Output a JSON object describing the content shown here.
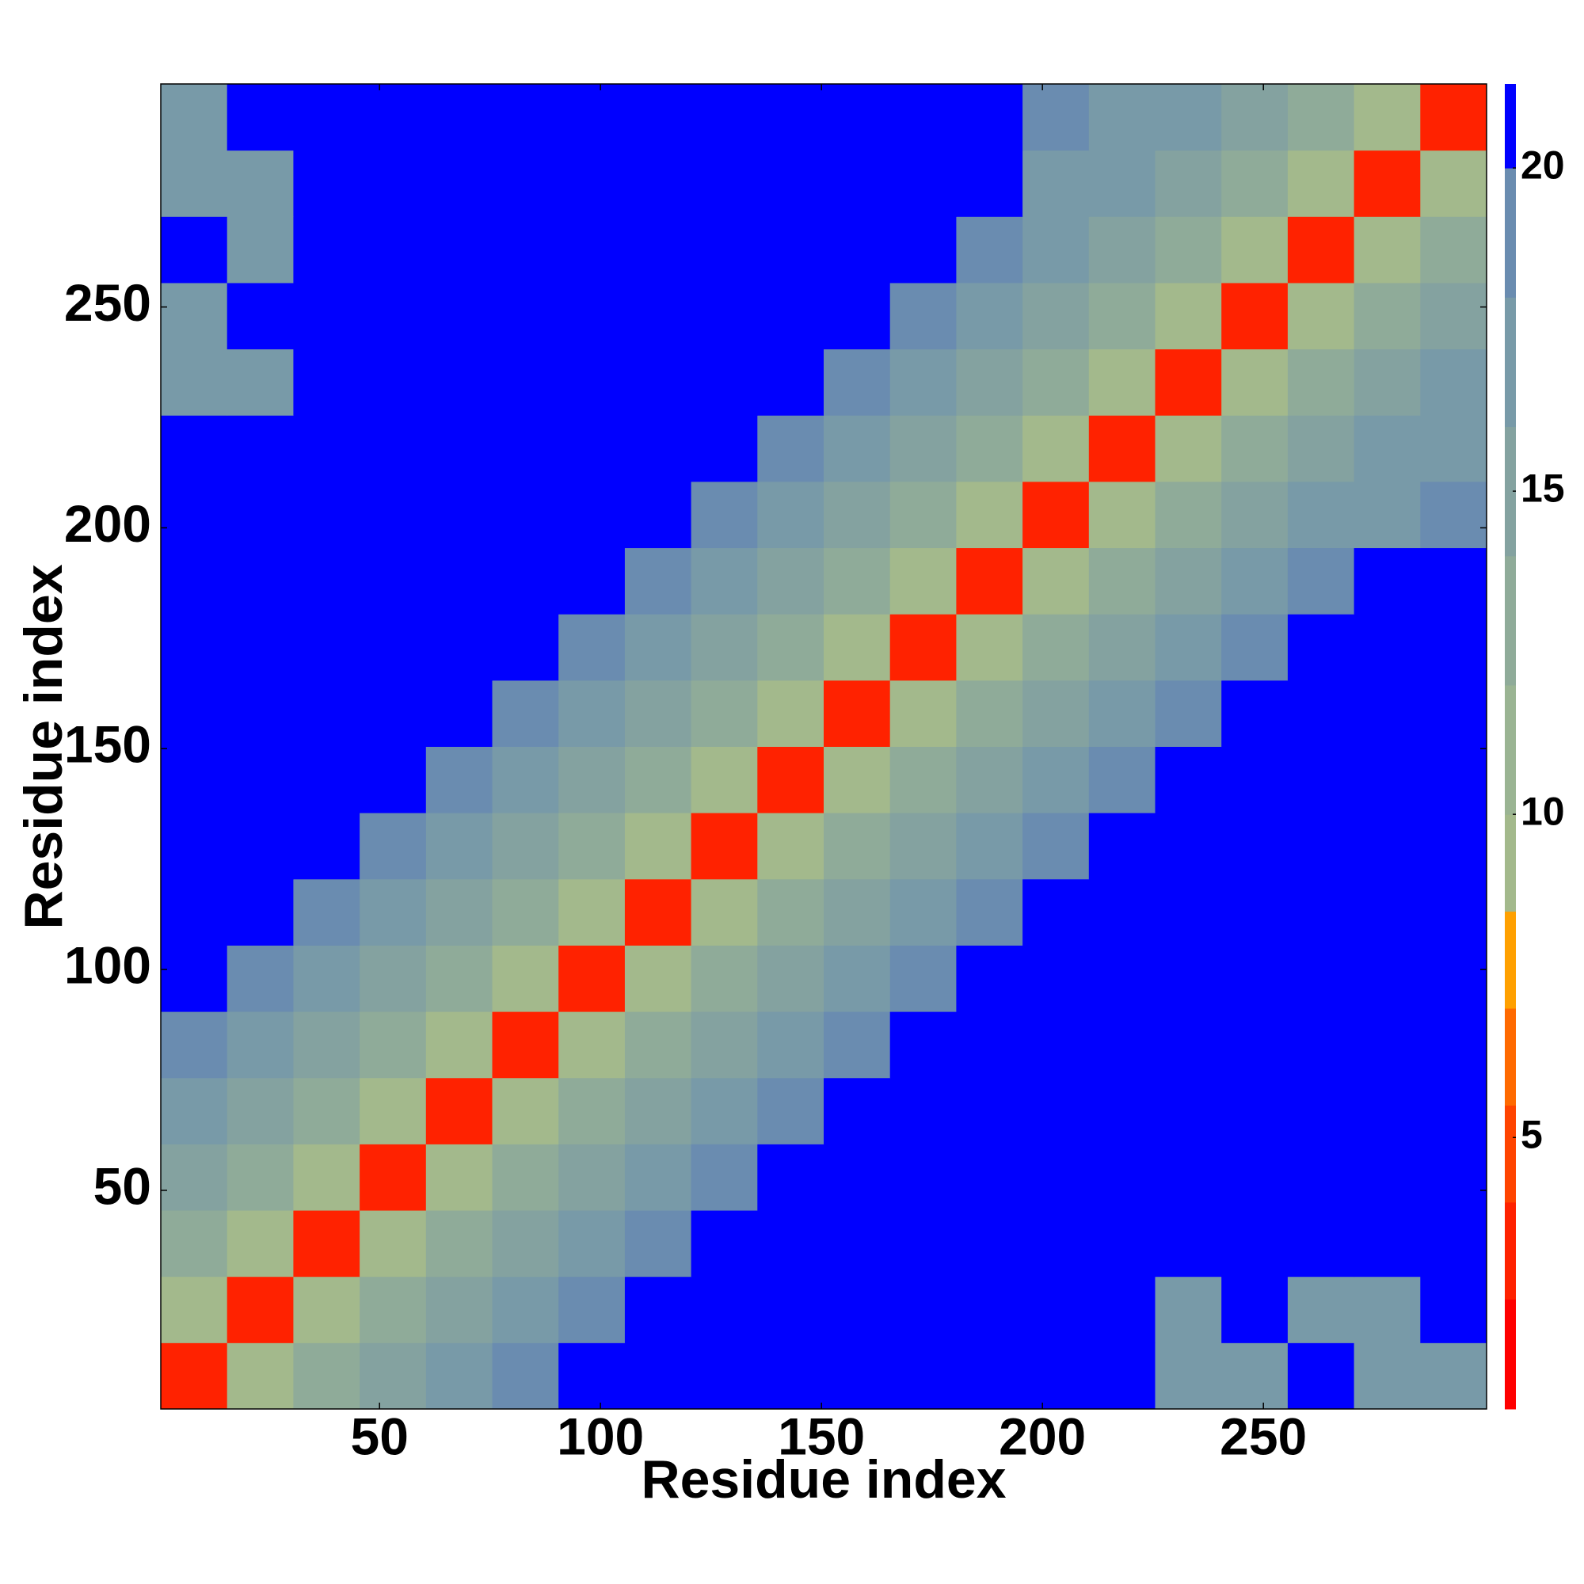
{
  "chart_data": {
    "type": "heatmap",
    "xlabel": "Residue index",
    "ylabel": "Residue index",
    "xlim": [
      0.5,
      300.5
    ],
    "ylim": [
      0.5,
      300.5
    ],
    "xticks": [
      50,
      100,
      150,
      200,
      250
    ],
    "yticks": [
      50,
      100,
      150,
      200,
      250
    ],
    "xbins": [
      0.5,
      15.5,
      30.5,
      45.5,
      60.5,
      75.5,
      90.5,
      105.5,
      120.5,
      135.5,
      150.5,
      165.5,
      180.5,
      195.5,
      210.5,
      225.5,
      240.5,
      255.5,
      270.5,
      285.5,
      300.5
    ],
    "ybins": [
      0.5,
      15.5,
      30.5,
      45.5,
      60.5,
      75.5,
      90.5,
      105.5,
      120.5,
      135.5,
      150.5,
      165.5,
      180.5,
      195.5,
      210.5,
      225.5,
      240.5,
      255.5,
      270.5,
      285.5,
      300.5
    ],
    "values": [
      [
        4,
        10,
        13,
        15,
        18,
        20,
        21,
        21,
        21,
        21,
        21,
        21,
        21,
        21,
        21,
        18,
        18,
        21,
        18,
        18
      ],
      [
        10,
        4,
        10,
        13,
        15,
        18,
        20,
        21,
        21,
        21,
        21,
        21,
        21,
        21,
        21,
        18,
        21,
        18,
        18,
        21
      ],
      [
        13,
        10,
        4,
        10,
        13,
        15,
        18,
        20,
        21,
        21,
        21,
        21,
        21,
        21,
        21,
        21,
        21,
        21,
        21,
        21
      ],
      [
        15,
        13,
        10,
        4,
        10,
        13,
        15,
        18,
        20,
        21,
        21,
        21,
        21,
        21,
        21,
        21,
        21,
        21,
        21,
        21
      ],
      [
        18,
        15,
        13,
        10,
        4,
        10,
        13,
        15,
        18,
        20,
        21,
        21,
        21,
        21,
        21,
        21,
        21,
        21,
        21,
        21
      ],
      [
        20,
        18,
        15,
        13,
        10,
        4,
        10,
        13,
        15,
        18,
        20,
        21,
        21,
        21,
        21,
        21,
        21,
        21,
        21,
        21
      ],
      [
        21,
        20,
        18,
        15,
        13,
        10,
        4,
        10,
        13,
        15,
        18,
        20,
        21,
        21,
        21,
        21,
        21,
        21,
        21,
        21
      ],
      [
        21,
        21,
        20,
        18,
        15,
        13,
        10,
        4,
        10,
        13,
        15,
        18,
        20,
        21,
        21,
        21,
        21,
        21,
        21,
        21
      ],
      [
        21,
        21,
        21,
        20,
        18,
        15,
        13,
        10,
        4,
        10,
        13,
        15,
        18,
        20,
        21,
        21,
        21,
        21,
        21,
        21
      ],
      [
        21,
        21,
        21,
        21,
        20,
        18,
        15,
        13,
        10,
        4,
        10,
        13,
        15,
        18,
        20,
        21,
        21,
        21,
        21,
        21
      ],
      [
        21,
        21,
        21,
        21,
        21,
        20,
        18,
        15,
        13,
        10,
        4,
        10,
        13,
        15,
        18,
        20,
        21,
        21,
        21,
        21
      ],
      [
        21,
        21,
        21,
        21,
        21,
        21,
        20,
        18,
        15,
        13,
        10,
        4,
        10,
        13,
        15,
        18,
        20,
        21,
        21,
        21
      ],
      [
        21,
        21,
        21,
        21,
        21,
        21,
        21,
        20,
        18,
        15,
        13,
        10,
        4,
        10,
        13,
        15,
        18,
        20,
        21,
        21
      ],
      [
        21,
        21,
        21,
        21,
        21,
        21,
        21,
        21,
        20,
        18,
        15,
        13,
        10,
        4,
        10,
        13,
        15,
        17,
        18,
        20
      ],
      [
        21,
        21,
        21,
        21,
        21,
        21,
        21,
        21,
        21,
        20,
        18,
        15,
        13,
        10,
        4,
        10,
        13,
        15,
        17,
        18
      ],
      [
        18,
        18,
        21,
        21,
        21,
        21,
        21,
        21,
        21,
        21,
        20,
        18,
        15,
        13,
        10,
        4,
        10,
        13,
        15,
        17
      ],
      [
        18,
        21,
        21,
        21,
        21,
        21,
        21,
        21,
        21,
        21,
        21,
        20,
        18,
        15,
        13,
        10,
        4,
        10,
        13,
        15
      ],
      [
        21,
        18,
        21,
        21,
        21,
        21,
        21,
        21,
        21,
        21,
        21,
        21,
        20,
        17,
        15,
        13,
        10,
        4,
        10,
        13
      ],
      [
        18,
        18,
        21,
        21,
        21,
        21,
        21,
        21,
        21,
        21,
        21,
        21,
        21,
        18,
        17,
        15,
        13,
        10,
        4,
        10
      ],
      [
        18,
        21,
        21,
        21,
        21,
        21,
        21,
        21,
        21,
        21,
        21,
        21,
        21,
        20,
        18,
        17,
        15,
        13,
        10,
        4
      ]
    ],
    "levels": [
      0.8,
      2.5,
      4,
      5.5,
      7,
      8.5,
      10,
      12,
      14,
      16,
      18,
      20,
      21.3
    ],
    "colors": [
      "#ff0000",
      "#ff2200",
      "#ff4400",
      "#ff6a00",
      "#ffa000",
      "#a3b98c",
      "#9ab493",
      "#8fab99",
      "#84a2a0",
      "#789aa8",
      "#6a8cb0",
      "#0000ff"
    ],
    "colorbar_ticks": [
      5,
      10,
      15,
      20
    ]
  }
}
